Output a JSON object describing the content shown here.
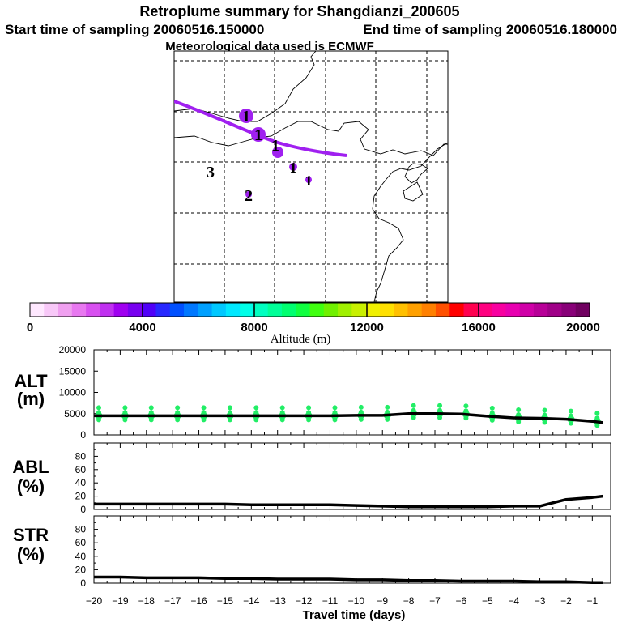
{
  "header": {
    "title": "Retroplume summary for Shangdianzi_200605",
    "start": "Start time of sampling 20060516.150000",
    "end": "End time of sampling 20060516.180000",
    "met": "Meteorological data used is ECMWF"
  },
  "colors": {
    "palette": [
      "#ffe8ff",
      "#f8c8f8",
      "#f0a0f0",
      "#e878f0",
      "#d850f0",
      "#c030f0",
      "#a000f0",
      "#7800f0",
      "#5000f8",
      "#2828ff",
      "#0050ff",
      "#0078ff",
      "#00a0ff",
      "#00c8ff",
      "#00e8ff",
      "#00ffe8",
      "#00ffc0",
      "#00ff98",
      "#00ff70",
      "#10ff40",
      "#40ff10",
      "#70f000",
      "#a0f000",
      "#c8f000",
      "#f0f000",
      "#ffe000",
      "#ffc000",
      "#ffa000",
      "#ff8000",
      "#ff5000",
      "#ff0000",
      "#ff0050",
      "#ff0080",
      "#f800a0",
      "#e800b0",
      "#d000a8",
      "#b80098",
      "#a00088",
      "#880078",
      "#700060"
    ],
    "plume_line": "#a020f0",
    "altitude_dots": "#22ee66"
  },
  "map": {
    "plume_markers": [
      {
        "label": "1",
        "size": 9,
        "color": "#a020f0"
      },
      {
        "label": "1",
        "size": 9,
        "color": "#a020f0"
      },
      {
        "label": "1",
        "size": 7,
        "color": "#a020f0"
      },
      {
        "label": "1",
        "size": 5,
        "color": "#a020f0"
      },
      {
        "label": "1",
        "size": 4,
        "color": "#a020f0"
      },
      {
        "label": "3",
        "size": 0,
        "color": "#a020f0"
      },
      {
        "label": "2",
        "size": 4,
        "color": "#a020f0"
      }
    ]
  },
  "colorbar": {
    "ticks": [
      "0",
      "4000",
      "8000",
      "12000",
      "16000",
      "20000"
    ],
    "label": "Altitude (m)"
  },
  "chart_data": [
    {
      "type": "line",
      "panel": "ALT",
      "label": [
        "ALT",
        "(m)"
      ],
      "x": [
        -20,
        -19,
        -18,
        -17,
        -16,
        -15,
        -14,
        -13,
        -12,
        -11,
        -10,
        -9,
        -8,
        -7,
        -6,
        -5,
        -4,
        -3,
        -2,
        -1,
        -0.6
      ],
      "values": [
        4500,
        4500,
        4500,
        4500,
        4500,
        4500,
        4500,
        4500,
        4500,
        4500,
        4600,
        4600,
        5000,
        5000,
        4900,
        4400,
        4000,
        3900,
        3700,
        3200,
        2900
      ],
      "yticks": [
        "0",
        "5000",
        "10000",
        "15000",
        "20000"
      ],
      "ylim": [
        0,
        20000
      ],
      "xlim": [
        -20,
        -0.3
      ]
    },
    {
      "type": "line",
      "panel": "ABL",
      "label": [
        "ABL",
        "(%)"
      ],
      "x": [
        -20,
        -19,
        -18,
        -17,
        -16,
        -15,
        -14,
        -13,
        -12,
        -11,
        -10,
        -9,
        -8,
        -7,
        -6,
        -5,
        -4,
        -3,
        -2,
        -1,
        -0.6
      ],
      "values": [
        8,
        8,
        8,
        8,
        8,
        8,
        7,
        7,
        7,
        7,
        6,
        5,
        4,
        4,
        4,
        4,
        5,
        5,
        15,
        18,
        20
      ],
      "yticks": [
        "0",
        "20",
        "40",
        "60",
        "80"
      ],
      "ylim": [
        0,
        100
      ],
      "xlim": [
        -20,
        -0.3
      ]
    },
    {
      "type": "line",
      "panel": "STR",
      "label": [
        "STR",
        "(%)"
      ],
      "x": [
        -20,
        -19,
        -18,
        -17,
        -16,
        -15,
        -14,
        -13,
        -12,
        -11,
        -10,
        -9,
        -8,
        -7,
        -6,
        -5,
        -4,
        -3,
        -2,
        -1,
        -0.6
      ],
      "values": [
        9,
        9,
        8,
        8,
        8,
        7,
        7,
        6,
        6,
        6,
        5,
        5,
        4,
        4,
        3,
        3,
        3,
        2,
        2,
        1,
        1
      ],
      "yticks": [
        "0",
        "20",
        "40",
        "60",
        "80"
      ],
      "ylim": [
        0,
        100
      ],
      "xlim": [
        -20,
        -0.3
      ]
    }
  ],
  "xaxis": {
    "ticks": [
      "−20",
      "−19",
      "−18",
      "−17",
      "−16",
      "−15",
      "−14",
      "−13",
      "−12",
      "−11",
      "−10",
      "−9",
      "−8",
      "−7",
      "−6",
      "−5",
      "−4",
      "−3",
      "−2",
      "−1"
    ],
    "label": "Travel time (days)"
  }
}
